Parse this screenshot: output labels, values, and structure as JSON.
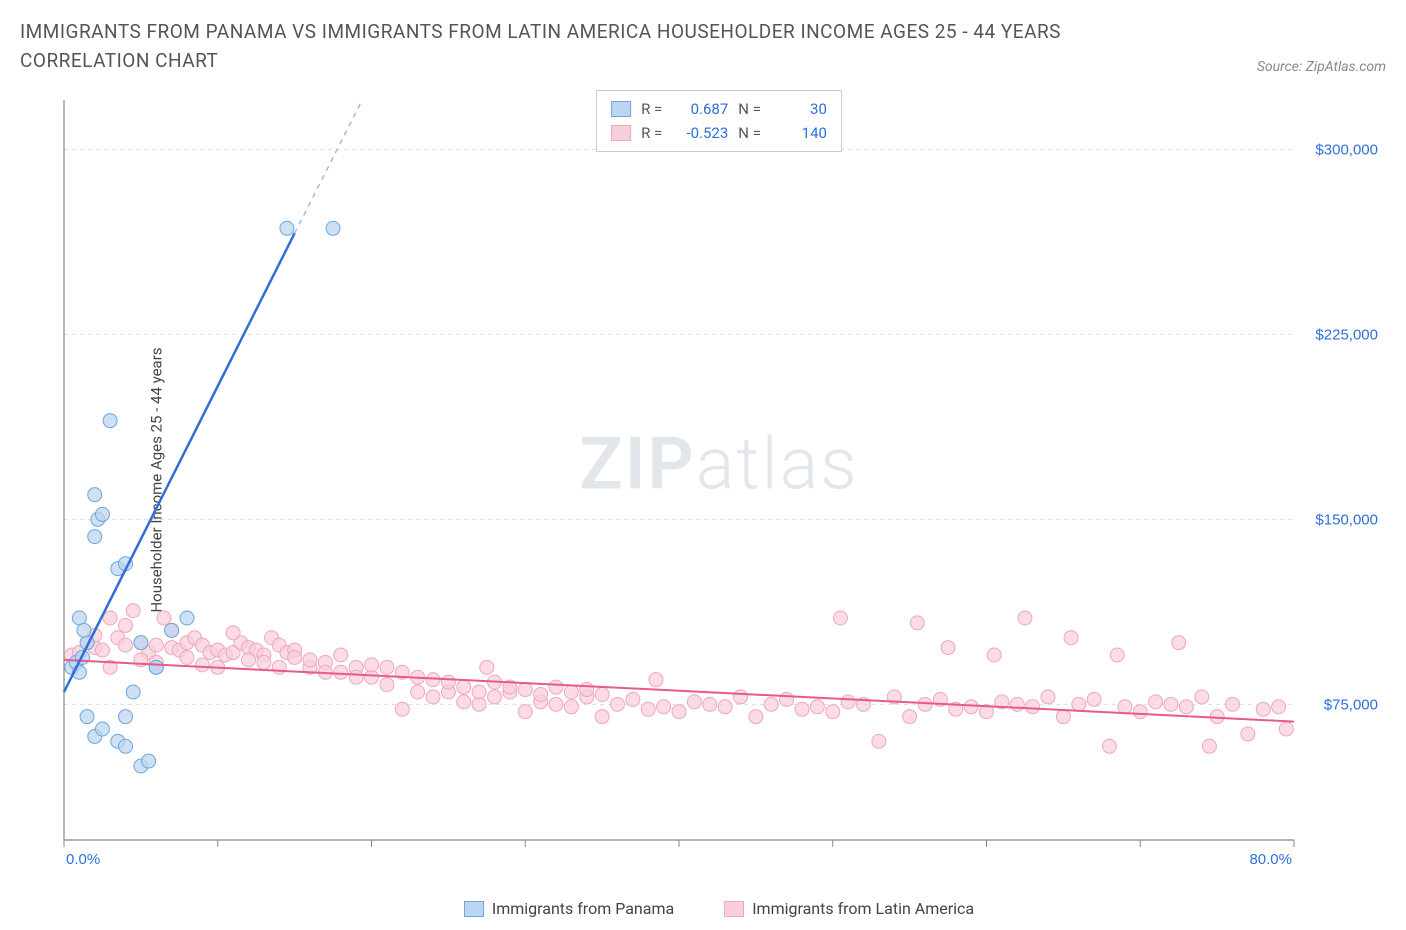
{
  "title": "IMMIGRANTS FROM PANAMA VS IMMIGRANTS FROM LATIN AMERICA HOUSEHOLDER INCOME AGES 25 - 44 YEARS CORRELATION CHART",
  "source": "Source: ZipAtlas.com",
  "watermark_a": "ZIP",
  "watermark_b": "atlas",
  "y_axis_label": "Householder Income Ages 25 - 44 years",
  "chart": {
    "type": "scatter",
    "xlim": [
      0,
      80
    ],
    "ylim": [
      20000,
      320000
    ],
    "x_ticks": [
      0,
      10,
      20,
      30,
      40,
      50,
      60,
      70,
      80
    ],
    "x_tick_labels": {
      "0": "0.0%",
      "80": "80.0%"
    },
    "y_ticks": [
      75000,
      150000,
      225000,
      300000
    ],
    "y_tick_labels": {
      "75000": "$75,000",
      "150000": "$150,000",
      "225000": "$225,000",
      "300000": "$300,000"
    },
    "grid_color": "#dddddd",
    "axis_color": "#888888",
    "background_color": "#ffffff",
    "series": [
      {
        "name": "Immigrants from Panama",
        "color_fill": "#bcd5f0",
        "color_stroke": "#6fa6de",
        "trend_color": "#2e6fd9",
        "trend_dash_color": "#9cb9e6",
        "marker_radius": 7,
        "R": "0.687",
        "N": "30",
        "trend": {
          "x1": 0,
          "y1": 80000,
          "x2": 15,
          "y2": 266000,
          "dash_to_x": 22,
          "dash_to_y": 352000
        },
        "points": [
          [
            0.5,
            90000
          ],
          [
            0.8,
            92000
          ],
          [
            1.0,
            88000
          ],
          [
            1.2,
            94000
          ],
          [
            1.5,
            100000
          ],
          [
            1.0,
            110000
          ],
          [
            1.3,
            105000
          ],
          [
            2.0,
            143000
          ],
          [
            2.2,
            150000
          ],
          [
            2.5,
            152000
          ],
          [
            2.0,
            160000
          ],
          [
            3.5,
            130000
          ],
          [
            4.0,
            132000
          ],
          [
            3.0,
            190000
          ],
          [
            1.5,
            70000
          ],
          [
            2.0,
            62000
          ],
          [
            2.5,
            65000
          ],
          [
            3.5,
            60000
          ],
          [
            4.0,
            58000
          ],
          [
            5.0,
            50000
          ],
          [
            5.5,
            52000
          ],
          [
            4.0,
            70000
          ],
          [
            6.0,
            90000
          ],
          [
            5.0,
            100000
          ],
          [
            8.0,
            110000
          ],
          [
            7.0,
            105000
          ],
          [
            6.0,
            90000
          ],
          [
            4.5,
            80000
          ],
          [
            14.5,
            268000
          ],
          [
            17.5,
            268000
          ]
        ]
      },
      {
        "name": "Immigrants from Latin America",
        "color_fill": "#f9cfdb",
        "color_stroke": "#efa7bd",
        "trend_color": "#e75a8a",
        "marker_radius": 7,
        "R": "-0.523",
        "N": "140",
        "trend": {
          "x1": 0,
          "y1": 93000,
          "x2": 80,
          "y2": 68000
        },
        "points": [
          [
            0.5,
            95000
          ],
          [
            1,
            96000
          ],
          [
            1.5,
            100000
          ],
          [
            2,
            98000
          ],
          [
            2.5,
            97000
          ],
          [
            3,
            110000
          ],
          [
            3.5,
            102000
          ],
          [
            4,
            99000
          ],
          [
            4.5,
            113000
          ],
          [
            5,
            100000
          ],
          [
            5.5,
            96000
          ],
          [
            6,
            99000
          ],
          [
            6.5,
            110000
          ],
          [
            7,
            98000
          ],
          [
            7.5,
            97000
          ],
          [
            8,
            100000
          ],
          [
            8.5,
            102000
          ],
          [
            9,
            99000
          ],
          [
            9.5,
            96000
          ],
          [
            10,
            97000
          ],
          [
            10.5,
            95000
          ],
          [
            11,
            96000
          ],
          [
            11.5,
            100000
          ],
          [
            12,
            98000
          ],
          [
            12.5,
            97000
          ],
          [
            13,
            95000
          ],
          [
            13.5,
            102000
          ],
          [
            14,
            99000
          ],
          [
            14.5,
            96000
          ],
          [
            15,
            97000
          ],
          [
            16,
            90000
          ],
          [
            17,
            92000
          ],
          [
            18,
            88000
          ],
          [
            19,
            90000
          ],
          [
            20,
            86000
          ],
          [
            21,
            83000
          ],
          [
            22,
            73000
          ],
          [
            23,
            80000
          ],
          [
            24,
            78000
          ],
          [
            25,
            80000
          ],
          [
            26,
            76000
          ],
          [
            27,
            75000
          ],
          [
            27.5,
            90000
          ],
          [
            28,
            78000
          ],
          [
            29,
            80000
          ],
          [
            30,
            72000
          ],
          [
            31,
            76000
          ],
          [
            32,
            75000
          ],
          [
            33,
            74000
          ],
          [
            34,
            78000
          ],
          [
            35,
            70000
          ],
          [
            36,
            75000
          ],
          [
            37,
            77000
          ],
          [
            38,
            73000
          ],
          [
            38.5,
            85000
          ],
          [
            39,
            74000
          ],
          [
            40,
            72000
          ],
          [
            41,
            76000
          ],
          [
            42,
            75000
          ],
          [
            43,
            74000
          ],
          [
            44,
            78000
          ],
          [
            45,
            70000
          ],
          [
            46,
            75000
          ],
          [
            47,
            77000
          ],
          [
            48,
            73000
          ],
          [
            49,
            74000
          ],
          [
            50,
            72000
          ],
          [
            50.5,
            110000
          ],
          [
            51,
            76000
          ],
          [
            52,
            75000
          ],
          [
            53,
            60000
          ],
          [
            54,
            78000
          ],
          [
            55,
            70000
          ],
          [
            55.5,
            108000
          ],
          [
            56,
            75000
          ],
          [
            57,
            77000
          ],
          [
            57.5,
            98000
          ],
          [
            58,
            73000
          ],
          [
            59,
            74000
          ],
          [
            60,
            72000
          ],
          [
            60.5,
            95000
          ],
          [
            61,
            76000
          ],
          [
            62,
            75000
          ],
          [
            62.5,
            110000
          ],
          [
            63,
            74000
          ],
          [
            64,
            78000
          ],
          [
            65,
            70000
          ],
          [
            65.5,
            102000
          ],
          [
            66,
            75000
          ],
          [
            67,
            77000
          ],
          [
            68,
            58000
          ],
          [
            68.5,
            95000
          ],
          [
            69,
            74000
          ],
          [
            70,
            72000
          ],
          [
            71,
            76000
          ],
          [
            72,
            75000
          ],
          [
            72.5,
            100000
          ],
          [
            73,
            74000
          ],
          [
            74,
            78000
          ],
          [
            74.5,
            58000
          ],
          [
            75,
            70000
          ],
          [
            76,
            75000
          ],
          [
            77,
            63000
          ],
          [
            78,
            73000
          ],
          [
            79,
            74000
          ],
          [
            79.5,
            65000
          ],
          [
            2,
            103000
          ],
          [
            3,
            90000
          ],
          [
            4,
            107000
          ],
          [
            5,
            93000
          ],
          [
            6,
            92000
          ],
          [
            7,
            105000
          ],
          [
            8,
            94000
          ],
          [
            9,
            91000
          ],
          [
            10,
            90000
          ],
          [
            11,
            104000
          ],
          [
            12,
            93000
          ],
          [
            13,
            92000
          ],
          [
            14,
            90000
          ],
          [
            15,
            94000
          ],
          [
            16,
            93000
          ],
          [
            17,
            88000
          ],
          [
            18,
            95000
          ],
          [
            19,
            86000
          ],
          [
            20,
            91000
          ],
          [
            21,
            90000
          ],
          [
            22,
            88000
          ],
          [
            23,
            86000
          ],
          [
            24,
            85000
          ],
          [
            25,
            84000
          ],
          [
            26,
            82000
          ],
          [
            27,
            80000
          ],
          [
            28,
            84000
          ],
          [
            29,
            82000
          ],
          [
            30,
            81000
          ],
          [
            31,
            79000
          ],
          [
            32,
            82000
          ],
          [
            33,
            80000
          ],
          [
            34,
            81000
          ],
          [
            35,
            79000
          ]
        ]
      }
    ]
  },
  "legend": {
    "series1_label": "Immigrants from Panama",
    "series2_label": "Immigrants from Latin America"
  },
  "stats_labels": {
    "R": "R =",
    "N": "N ="
  }
}
